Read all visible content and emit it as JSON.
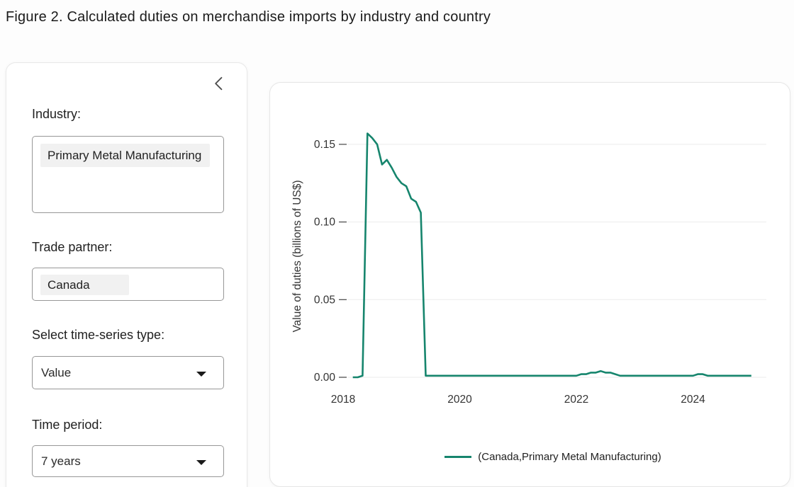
{
  "page": {
    "title": "Figure 2. Calculated duties on merchandise imports by industry and country"
  },
  "sidebar": {
    "collapse_button": {
      "icon": "chevron-left"
    },
    "industry": {
      "label": "Industry:",
      "selected": "Primary Metal Manufacturing"
    },
    "trade_partner": {
      "label": "Trade partner:",
      "selected": "Canada"
    },
    "series_type": {
      "label": "Select time-series type:",
      "value": "Value",
      "icon": "caret-down"
    },
    "time_period": {
      "label": "Time period:",
      "value": "7 years",
      "icon": "caret-down"
    }
  },
  "chart_data": {
    "type": "line",
    "title": "",
    "xlabel": "",
    "ylabel": "Value of duties (billions of US$)",
    "xticks": [
      2018,
      2020,
      2022,
      2024
    ],
    "yticks": [
      0,
      0.05,
      0.1,
      0.15
    ],
    "xlim": [
      2017.9,
      2025.25
    ],
    "ylim": [
      0,
      0.165
    ],
    "grid": true,
    "legend_position": "bottom-center",
    "colors": {
      "grid": "#ebebeb",
      "tick": "#444444",
      "axis_text": "#333333",
      "line": "#16856d"
    },
    "series": [
      {
        "name": "(Canada,Primary Metal Manufacturing)",
        "color": "#16856d",
        "x": [
          2018.167,
          2018.25,
          2018.333,
          2018.417,
          2018.5,
          2018.583,
          2018.667,
          2018.75,
          2018.833,
          2018.917,
          2019.0,
          2019.083,
          2019.167,
          2019.25,
          2019.333,
          2019.417,
          2019.5,
          2019.583,
          2019.667,
          2019.75,
          2019.833,
          2019.917,
          2020.0,
          2020.083,
          2020.167,
          2020.25,
          2020.333,
          2020.417,
          2020.5,
          2020.583,
          2020.667,
          2020.75,
          2020.833,
          2020.917,
          2021.0,
          2021.083,
          2021.167,
          2021.25,
          2021.333,
          2021.417,
          2021.5,
          2021.583,
          2021.667,
          2021.75,
          2021.833,
          2021.917,
          2022.0,
          2022.083,
          2022.167,
          2022.25,
          2022.333,
          2022.417,
          2022.5,
          2022.583,
          2022.667,
          2022.75,
          2022.833,
          2022.917,
          2023.0,
          2023.083,
          2023.167,
          2023.25,
          2023.333,
          2023.417,
          2023.5,
          2023.583,
          2023.667,
          2023.75,
          2023.833,
          2023.917,
          2024.0,
          2024.083,
          2024.167,
          2024.25,
          2024.333,
          2024.417,
          2024.5,
          2024.583,
          2024.667,
          2024.75,
          2024.833,
          2024.917,
          2025.0
        ],
        "y": [
          0.0,
          0.0,
          0.001,
          0.157,
          0.154,
          0.15,
          0.137,
          0.14,
          0.135,
          0.129,
          0.125,
          0.123,
          0.115,
          0.113,
          0.106,
          0.001,
          0.001,
          0.001,
          0.001,
          0.001,
          0.001,
          0.001,
          0.001,
          0.001,
          0.001,
          0.001,
          0.001,
          0.001,
          0.001,
          0.001,
          0.001,
          0.001,
          0.001,
          0.001,
          0.001,
          0.001,
          0.001,
          0.001,
          0.001,
          0.001,
          0.001,
          0.001,
          0.001,
          0.001,
          0.001,
          0.001,
          0.001,
          0.002,
          0.002,
          0.003,
          0.003,
          0.004,
          0.003,
          0.003,
          0.002,
          0.001,
          0.001,
          0.001,
          0.001,
          0.001,
          0.001,
          0.001,
          0.001,
          0.001,
          0.001,
          0.001,
          0.001,
          0.001,
          0.001,
          0.001,
          0.001,
          0.002,
          0.002,
          0.001,
          0.001,
          0.001,
          0.001,
          0.001,
          0.001,
          0.001,
          0.001,
          0.001,
          0.001
        ]
      }
    ]
  }
}
